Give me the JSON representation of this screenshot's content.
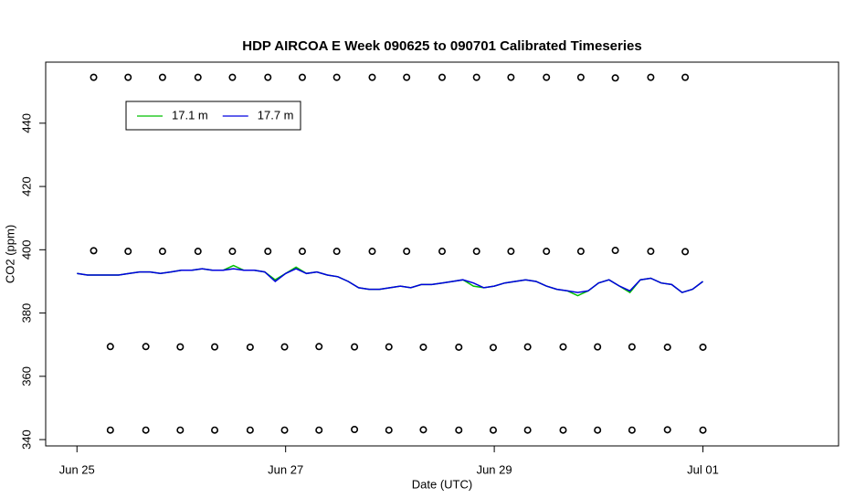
{
  "chart_data": {
    "type": "line",
    "title": "HDP AIRCOA E  Week 090625 to 090701  Calibrated Timeseries",
    "xlabel": "Date (UTC)",
    "ylabel": "CO2 (ppm)",
    "xlim": [
      -0.3,
      7.3
    ],
    "ylim": [
      338,
      459.3
    ],
    "xticks": [
      {
        "value": 0,
        "label": "Jun 25"
      },
      {
        "value": 2,
        "label": "Jun 27"
      },
      {
        "value": 4,
        "label": "Jun 29"
      },
      {
        "value": 6,
        "label": "Jul 01"
      }
    ],
    "yticks": [
      340,
      360,
      380,
      400,
      420,
      440
    ],
    "legend": "topleft",
    "x": [
      0.0,
      0.1,
      0.2,
      0.3,
      0.4,
      0.5,
      0.6,
      0.7,
      0.8,
      0.9,
      1.0,
      1.1,
      1.2,
      1.3,
      1.4,
      1.5,
      1.6,
      1.7,
      1.8,
      1.9,
      2.0,
      2.1,
      2.2,
      2.3,
      2.4,
      2.5,
      2.6,
      2.7,
      2.8,
      2.9,
      3.0,
      3.1,
      3.2,
      3.3,
      3.4,
      3.5,
      3.6,
      3.7,
      3.8,
      3.9,
      4.0,
      4.1,
      4.2,
      4.3,
      4.4,
      4.5,
      4.6,
      4.7,
      4.8,
      4.9,
      5.0,
      5.1,
      5.2,
      5.3,
      5.4,
      5.5,
      5.6,
      5.7,
      5.8,
      5.9,
      6.0
    ],
    "series": [
      {
        "name": "17.1 m",
        "color": "#00c000",
        "values": [
          392.5,
          392,
          392,
          392,
          392,
          392.5,
          393,
          393,
          392.5,
          393,
          393.5,
          393.5,
          394,
          393.5,
          393.5,
          395,
          393.5,
          393.5,
          393,
          390.5,
          392.5,
          394.5,
          392.5,
          393,
          392,
          391.5,
          390,
          388,
          387.5,
          387.5,
          388,
          388.5,
          388,
          389,
          389,
          389.5,
          390,
          390.5,
          388.5,
          388,
          388.5,
          389.5,
          390,
          390.5,
          390,
          388.5,
          387.5,
          387,
          385.5,
          387,
          389.5,
          390.5,
          388.5,
          386.5,
          390.5,
          391,
          389.5,
          389,
          386.5,
          387.5,
          390
        ]
      },
      {
        "name": "17.7 m",
        "color": "#0000e0",
        "values": [
          392.5,
          392,
          392,
          392,
          392,
          392.5,
          393,
          393,
          392.5,
          393,
          393.5,
          393.5,
          394,
          393.5,
          393.5,
          394,
          393.5,
          393.5,
          393,
          390,
          392.5,
          394,
          392.5,
          393,
          392,
          391.5,
          390,
          388,
          387.5,
          387.5,
          388,
          388.5,
          388,
          389,
          389,
          389.5,
          390,
          390.5,
          389.5,
          388,
          388.5,
          389.5,
          390,
          390.5,
          390,
          388.5,
          387.5,
          387,
          386.5,
          387,
          389.5,
          390.5,
          388.5,
          387,
          390.5,
          391,
          389.5,
          389,
          386.5,
          387.5,
          390
        ]
      }
    ],
    "markers": [
      {
        "x": [
          0.16,
          0.49,
          0.82,
          1.16,
          1.49,
          1.83,
          2.16,
          2.49,
          2.83,
          3.16,
          3.5,
          3.83,
          4.16,
          4.5,
          4.83,
          5.16,
          5.5,
          5.83
        ],
        "y": [
          454.5,
          454.5,
          454.5,
          454.5,
          454.5,
          454.5,
          454.5,
          454.5,
          454.5,
          454.5,
          454.5,
          454.5,
          454.5,
          454.5,
          454.5,
          454.3,
          454.5,
          454.5
        ]
      },
      {
        "x": [
          0.16,
          0.49,
          0.82,
          1.16,
          1.49,
          1.83,
          2.16,
          2.49,
          2.83,
          3.16,
          3.5,
          3.83,
          4.16,
          4.5,
          4.83,
          5.16,
          5.5,
          5.83
        ],
        "y": [
          399.7,
          399.5,
          399.5,
          399.5,
          399.5,
          399.5,
          399.5,
          399.5,
          399.5,
          399.5,
          399.5,
          399.5,
          399.5,
          399.5,
          399.5,
          399.8,
          399.5,
          399.4
        ]
      },
      {
        "x": [
          0.32,
          0.66,
          0.99,
          1.32,
          1.66,
          1.99,
          2.32,
          2.66,
          2.99,
          3.32,
          3.66,
          3.99,
          4.32,
          4.66,
          4.99,
          5.32,
          5.66,
          6.0
        ],
        "y": [
          369.4,
          369.4,
          369.3,
          369.3,
          369.2,
          369.3,
          369.4,
          369.3,
          369.3,
          369.2,
          369.2,
          369.1,
          369.3,
          369.3,
          369.3,
          369.3,
          369.2,
          369.2
        ]
      },
      {
        "x": [
          0.32,
          0.66,
          0.99,
          1.32,
          1.66,
          1.99,
          2.32,
          2.66,
          2.99,
          3.32,
          3.66,
          3.99,
          4.32,
          4.66,
          4.99,
          5.32,
          5.66,
          6.0
        ],
        "y": [
          343,
          343,
          343,
          343,
          343,
          343,
          343,
          343.2,
          343,
          343.1,
          343,
          343,
          343,
          343,
          343,
          343,
          343.1,
          343
        ]
      }
    ]
  }
}
